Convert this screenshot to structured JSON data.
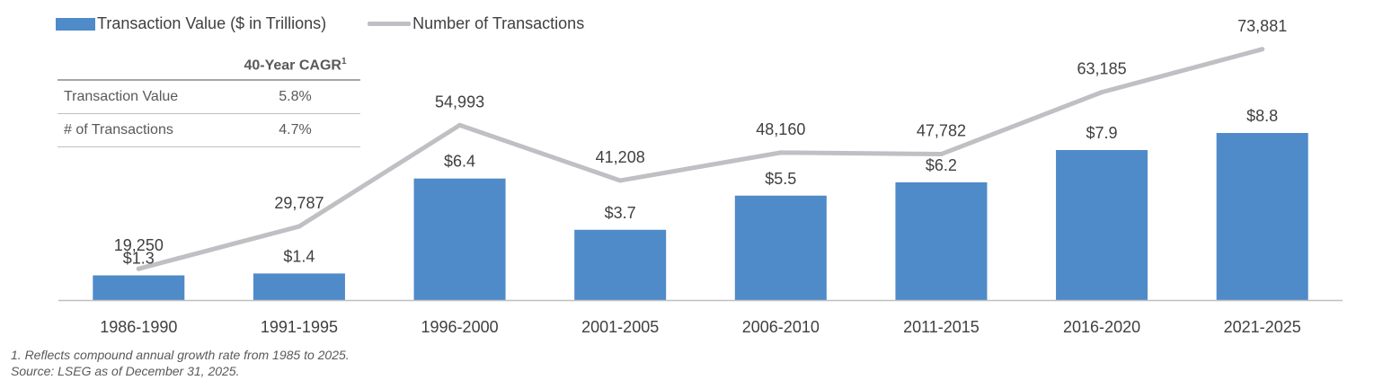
{
  "legend": {
    "bar_label": "Transaction Value ($ in Trillions)",
    "line_label": "Number of Transactions"
  },
  "colors": {
    "bar": "#4f8ac9",
    "line": "#bfc0c4",
    "axis": "#bfbfbf",
    "label": "#404040"
  },
  "cagr_table": {
    "header": "40-Year CAGR",
    "header_sup": "1",
    "rows": [
      {
        "label": "Transaction Value",
        "value": "5.8%"
      },
      {
        "label": "# of Transactions",
        "value": "4.7%"
      }
    ]
  },
  "chart_data": {
    "type": "bar",
    "categories": [
      "1986-1990",
      "1991-1995",
      "1996-2000",
      "2001-2005",
      "2006-2010",
      "2011-2015",
      "2016-2020",
      "2021-2025"
    ],
    "series": [
      {
        "name": "Transaction Value ($ in Trillions)",
        "type": "bar",
        "values": [
          1.3,
          1.4,
          6.4,
          3.7,
          5.5,
          6.2,
          7.9,
          8.8
        ],
        "labels": [
          "$1.3",
          "$1.4",
          "$6.4",
          "$3.7",
          "$5.5",
          "$6.2",
          "$7.9",
          "$8.8"
        ]
      },
      {
        "name": "Number of Transactions",
        "type": "line",
        "values": [
          19250,
          29787,
          54993,
          41208,
          48160,
          47782,
          63185,
          73881
        ],
        "labels": [
          "19,250",
          "29,787",
          "54,993",
          "41,208",
          "48,160",
          "47,782",
          "63,185",
          "73,881"
        ]
      }
    ],
    "grid": false,
    "legend_position": "top-left"
  },
  "footnotes": [
    "1. Reflects compound annual growth rate from 1985 to 2025.",
    "Source: LSEG as of December 31, 2025."
  ]
}
